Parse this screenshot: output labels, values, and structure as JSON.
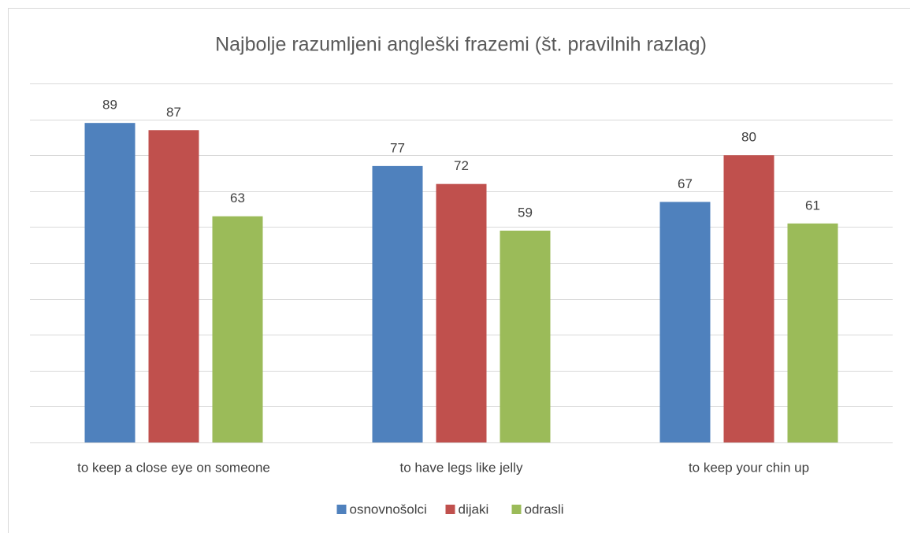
{
  "chart_data": {
    "type": "bar",
    "title": "Najbolje razumljeni angleški frazemi (št. pravilnih razlag)",
    "categories": [
      "to keep a close eye on someone",
      "to have legs like jelly",
      "to keep your chin up"
    ],
    "series": [
      {
        "name": "osnovnošolci",
        "color": "#4f81bd",
        "values": [
          89,
          77,
          67
        ]
      },
      {
        "name": "dijaki",
        "color": "#c0504d",
        "values": [
          87,
          72,
          80
        ]
      },
      {
        "name": "odrasli",
        "color": "#9bbb59",
        "values": [
          63,
          59,
          61
        ]
      }
    ],
    "ylim": [
      0,
      100
    ],
    "yticks": [
      0,
      10,
      20,
      30,
      40,
      50,
      60,
      70,
      80,
      90,
      100
    ],
    "grid": true,
    "legend": "bottom"
  }
}
